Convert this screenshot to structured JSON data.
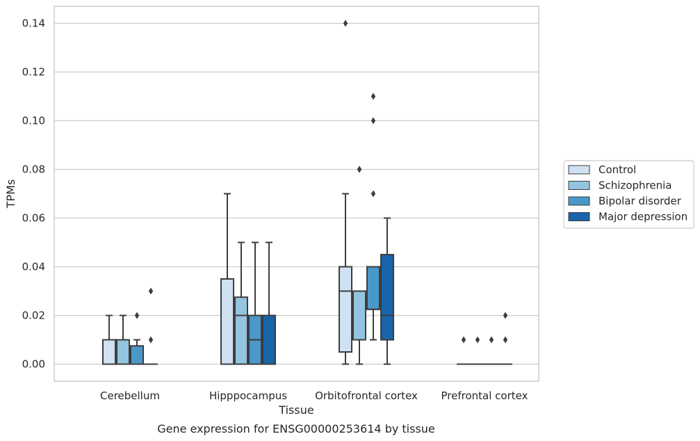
{
  "chart_data": {
    "type": "box",
    "title": "",
    "caption": "Gene expression for ENSG00000253614 by tissue",
    "xlabel": "Tissue",
    "ylabel": "TPMs",
    "ylim": [
      -0.007,
      0.147
    ],
    "yticks": [
      "0.00",
      "0.02",
      "0.04",
      "0.06",
      "0.08",
      "0.10",
      "0.12",
      "0.14"
    ],
    "ytick_values": [
      0,
      0.02,
      0.04,
      0.06,
      0.08,
      0.1,
      0.12,
      0.14
    ],
    "grid": "horizontal",
    "legend_position": "right",
    "categories": [
      "Cerebellum",
      "Hipppocampus",
      "Orbitofrontal cortex",
      "Prefrontal cortex"
    ],
    "series": [
      {
        "name": "Control",
        "color": "#d0e1f2",
        "boxes": [
          {
            "q1": 0,
            "median": 0,
            "q3": 0.01,
            "whislo": 0,
            "whishi": 0.02,
            "fliers": []
          },
          {
            "q1": 0,
            "median": 0,
            "q3": 0.035,
            "whislo": 0,
            "whishi": 0.07,
            "fliers": []
          },
          {
            "q1": 0.005,
            "median": 0.03,
            "q3": 0.04,
            "whislo": 0,
            "whishi": 0.07,
            "fliers": [
              0.14
            ]
          },
          {
            "q1": 0,
            "median": 0,
            "q3": 0,
            "whislo": 0,
            "whishi": 0,
            "fliers": [
              0.01
            ]
          }
        ]
      },
      {
        "name": "Schizophrenia",
        "color": "#94c4df",
        "boxes": [
          {
            "q1": 0,
            "median": 0,
            "q3": 0.01,
            "whislo": 0,
            "whishi": 0.02,
            "fliers": []
          },
          {
            "q1": 0,
            "median": 0.02,
            "q3": 0.0275,
            "whislo": 0,
            "whishi": 0.05,
            "fliers": []
          },
          {
            "q1": 0.01,
            "median": 0.03,
            "q3": 0.03,
            "whislo": 0,
            "whishi": 0.03,
            "fliers": [
              0.08,
              0.08
            ]
          },
          {
            "q1": 0,
            "median": 0,
            "q3": 0,
            "whislo": 0,
            "whishi": 0,
            "fliers": [
              0.01
            ]
          }
        ]
      },
      {
        "name": "Bipolar disorder",
        "color": "#4a98c9",
        "boxes": [
          {
            "q1": 0,
            "median": 0,
            "q3": 0.0075,
            "whislo": 0,
            "whishi": 0.01,
            "fliers": [
              0.02
            ]
          },
          {
            "q1": 0,
            "median": 0.01,
            "q3": 0.02,
            "whislo": 0,
            "whishi": 0.05,
            "fliers": []
          },
          {
            "q1": 0.0225,
            "median": 0.0225,
            "q3": 0.04,
            "whislo": 0.01,
            "whishi": 0.04,
            "fliers": [
              0.11,
              0.1,
              0.07
            ]
          },
          {
            "q1": 0,
            "median": 0,
            "q3": 0,
            "whislo": 0,
            "whishi": 0,
            "fliers": [
              0.01
            ]
          }
        ]
      },
      {
        "name": "Major depression",
        "color": "#1764ab",
        "boxes": [
          {
            "q1": 0,
            "median": 0,
            "q3": 0,
            "whislo": 0,
            "whishi": 0,
            "fliers": [
              0.03,
              0.01
            ]
          },
          {
            "q1": 0,
            "median": 0.02,
            "q3": 0.02,
            "whislo": 0,
            "whishi": 0.05,
            "fliers": []
          },
          {
            "q1": 0.01,
            "median": 0.02,
            "q3": 0.045,
            "whislo": 0,
            "whishi": 0.06,
            "fliers": []
          },
          {
            "q1": 0,
            "median": 0,
            "q3": 0,
            "whislo": 0,
            "whishi": 0,
            "fliers": [
              0.02,
              0.01
            ]
          }
        ]
      }
    ]
  }
}
